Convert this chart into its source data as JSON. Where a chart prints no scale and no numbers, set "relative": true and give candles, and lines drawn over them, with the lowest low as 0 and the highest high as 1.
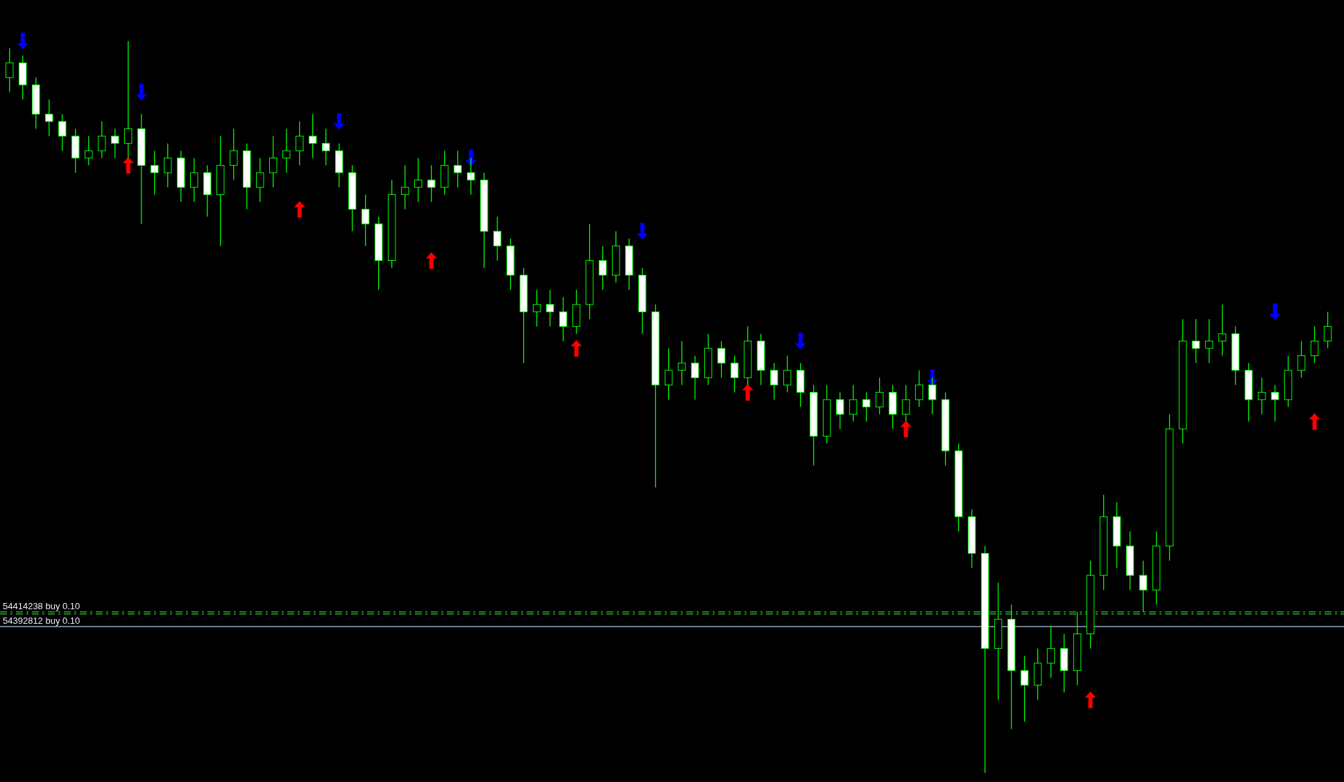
{
  "chart_data": {
    "type": "candlestick",
    "relative": true,
    "categories": [
      null,
      null,
      null,
      null,
      null,
      null,
      null,
      null,
      null,
      null,
      null,
      null,
      null,
      null,
      null,
      null,
      null,
      null,
      null,
      null,
      null,
      null,
      null,
      null,
      null,
      null,
      null,
      null,
      null,
      null,
      null,
      null,
      null,
      null,
      null,
      null,
      null,
      null,
      null,
      null,
      null,
      null,
      null,
      null,
      null,
      null,
      null,
      null,
      null,
      null,
      null,
      null,
      null,
      null,
      null,
      null,
      null,
      null,
      null,
      null,
      null,
      null,
      null,
      null,
      null,
      null,
      null,
      null,
      null,
      null,
      null,
      null,
      null,
      null,
      null,
      null,
      null,
      null,
      null,
      null,
      null,
      null,
      null,
      null,
      null,
      null,
      null,
      null,
      null,
      null,
      null,
      null,
      null,
      null,
      null,
      null,
      null,
      null,
      null,
      null,
      null
    ],
    "ohlc": [
      [
        0.95,
        0.99,
        0.93,
        0.97
      ],
      [
        0.97,
        0.98,
        0.92,
        0.94
      ],
      [
        0.94,
        0.95,
        0.88,
        0.9
      ],
      [
        0.9,
        0.92,
        0.87,
        0.89
      ],
      [
        0.89,
        0.9,
        0.85,
        0.87
      ],
      [
        0.87,
        0.88,
        0.82,
        0.84
      ],
      [
        0.84,
        0.87,
        0.83,
        0.85
      ],
      [
        0.85,
        0.89,
        0.84,
        0.87
      ],
      [
        0.87,
        0.88,
        0.84,
        0.86
      ],
      [
        0.86,
        1.0,
        0.84,
        0.88
      ],
      [
        0.88,
        0.9,
        0.75,
        0.83
      ],
      [
        0.83,
        0.85,
        0.79,
        0.82
      ],
      [
        0.82,
        0.86,
        0.8,
        0.84
      ],
      [
        0.84,
        0.85,
        0.78,
        0.8
      ],
      [
        0.8,
        0.84,
        0.78,
        0.82
      ],
      [
        0.82,
        0.83,
        0.76,
        0.79
      ],
      [
        0.79,
        0.87,
        0.72,
        0.83
      ],
      [
        0.83,
        0.88,
        0.81,
        0.85
      ],
      [
        0.85,
        0.86,
        0.77,
        0.8
      ],
      [
        0.8,
        0.84,
        0.78,
        0.82
      ],
      [
        0.82,
        0.87,
        0.8,
        0.84
      ],
      [
        0.84,
        0.88,
        0.82,
        0.85
      ],
      [
        0.85,
        0.89,
        0.83,
        0.87
      ],
      [
        0.87,
        0.9,
        0.84,
        0.86
      ],
      [
        0.86,
        0.88,
        0.83,
        0.85
      ],
      [
        0.85,
        0.86,
        0.8,
        0.82
      ],
      [
        0.82,
        0.83,
        0.74,
        0.77
      ],
      [
        0.77,
        0.79,
        0.72,
        0.75
      ],
      [
        0.75,
        0.76,
        0.66,
        0.7
      ],
      [
        0.7,
        0.81,
        0.69,
        0.79
      ],
      [
        0.79,
        0.83,
        0.77,
        0.8
      ],
      [
        0.8,
        0.84,
        0.78,
        0.81
      ],
      [
        0.81,
        0.83,
        0.78,
        0.8
      ],
      [
        0.8,
        0.85,
        0.79,
        0.83
      ],
      [
        0.83,
        0.85,
        0.8,
        0.82
      ],
      [
        0.82,
        0.84,
        0.79,
        0.81
      ],
      [
        0.81,
        0.82,
        0.69,
        0.74
      ],
      [
        0.74,
        0.76,
        0.7,
        0.72
      ],
      [
        0.72,
        0.73,
        0.66,
        0.68
      ],
      [
        0.68,
        0.69,
        0.56,
        0.63
      ],
      [
        0.63,
        0.66,
        0.61,
        0.64
      ],
      [
        0.64,
        0.66,
        0.61,
        0.63
      ],
      [
        0.63,
        0.65,
        0.59,
        0.61
      ],
      [
        0.61,
        0.66,
        0.6,
        0.64
      ],
      [
        0.64,
        0.75,
        0.62,
        0.7
      ],
      [
        0.7,
        0.72,
        0.66,
        0.68
      ],
      [
        0.68,
        0.74,
        0.67,
        0.72
      ],
      [
        0.72,
        0.73,
        0.66,
        0.68
      ],
      [
        0.68,
        0.69,
        0.6,
        0.63
      ],
      [
        0.63,
        0.64,
        0.39,
        0.53
      ],
      [
        0.53,
        0.58,
        0.51,
        0.55
      ],
      [
        0.55,
        0.59,
        0.53,
        0.56
      ],
      [
        0.56,
        0.57,
        0.51,
        0.54
      ],
      [
        0.54,
        0.6,
        0.53,
        0.58
      ],
      [
        0.58,
        0.59,
        0.54,
        0.56
      ],
      [
        0.56,
        0.57,
        0.52,
        0.54
      ],
      [
        0.54,
        0.61,
        0.53,
        0.59
      ],
      [
        0.59,
        0.6,
        0.53,
        0.55
      ],
      [
        0.55,
        0.56,
        0.51,
        0.53
      ],
      [
        0.53,
        0.57,
        0.52,
        0.55
      ],
      [
        0.55,
        0.56,
        0.5,
        0.52
      ],
      [
        0.52,
        0.53,
        0.42,
        0.46
      ],
      [
        0.46,
        0.53,
        0.45,
        0.51
      ],
      [
        0.51,
        0.52,
        0.47,
        0.49
      ],
      [
        0.49,
        0.53,
        0.48,
        0.51
      ],
      [
        0.51,
        0.52,
        0.48,
        0.5
      ],
      [
        0.5,
        0.54,
        0.49,
        0.52
      ],
      [
        0.52,
        0.53,
        0.47,
        0.49
      ],
      [
        0.49,
        0.53,
        0.48,
        0.51
      ],
      [
        0.51,
        0.55,
        0.5,
        0.53
      ],
      [
        0.53,
        0.54,
        0.49,
        0.51
      ],
      [
        0.51,
        0.52,
        0.42,
        0.44
      ],
      [
        0.44,
        0.45,
        0.33,
        0.35
      ],
      [
        0.35,
        0.36,
        0.28,
        0.3
      ],
      [
        0.3,
        0.31,
        0.0,
        0.17
      ],
      [
        0.17,
        0.26,
        0.1,
        0.21
      ],
      [
        0.21,
        0.23,
        0.06,
        0.14
      ],
      [
        0.14,
        0.16,
        0.07,
        0.12
      ],
      [
        0.12,
        0.17,
        0.1,
        0.15
      ],
      [
        0.15,
        0.2,
        0.13,
        0.17
      ],
      [
        0.17,
        0.19,
        0.11,
        0.14
      ],
      [
        0.14,
        0.22,
        0.12,
        0.19
      ],
      [
        0.19,
        0.29,
        0.17,
        0.27
      ],
      [
        0.27,
        0.38,
        0.25,
        0.35
      ],
      [
        0.35,
        0.37,
        0.28,
        0.31
      ],
      [
        0.31,
        0.33,
        0.25,
        0.27
      ],
      [
        0.27,
        0.29,
        0.22,
        0.25
      ],
      [
        0.25,
        0.33,
        0.23,
        0.31
      ],
      [
        0.31,
        0.49,
        0.29,
        0.47
      ],
      [
        0.47,
        0.62,
        0.45,
        0.59
      ],
      [
        0.59,
        0.62,
        0.56,
        0.58
      ],
      [
        0.58,
        0.62,
        0.56,
        0.59
      ],
      [
        0.59,
        0.64,
        0.57,
        0.6
      ],
      [
        0.6,
        0.61,
        0.53,
        0.55
      ],
      [
        0.55,
        0.56,
        0.48,
        0.51
      ],
      [
        0.51,
        0.54,
        0.49,
        0.52
      ],
      [
        0.52,
        0.53,
        0.48,
        0.51
      ],
      [
        0.51,
        0.57,
        0.5,
        0.55
      ],
      [
        0.55,
        0.59,
        0.54,
        0.57
      ],
      [
        0.57,
        0.61,
        0.56,
        0.59
      ],
      [
        0.59,
        0.63,
        0.58,
        0.61
      ]
    ],
    "color": "#00ff00",
    "series": [
      {
        "type": "scatter",
        "color": "#0000ff",
        "marker": "triangle-down",
        "values": [
          null,
          1.0,
          null,
          null,
          null,
          null,
          null,
          null,
          null,
          null,
          0.93,
          null,
          null,
          null,
          null,
          null,
          null,
          null,
          null,
          null,
          null,
          null,
          null,
          null,
          null,
          0.89,
          null,
          null,
          null,
          null,
          null,
          null,
          null,
          null,
          null,
          0.84,
          null,
          null,
          null,
          null,
          null,
          null,
          null,
          null,
          null,
          null,
          null,
          null,
          0.74,
          null,
          null,
          null,
          null,
          null,
          null,
          null,
          null,
          null,
          null,
          null,
          0.59,
          null,
          null,
          null,
          null,
          null,
          null,
          null,
          null,
          null,
          0.54,
          null,
          null,
          null,
          null,
          null,
          null,
          null,
          null,
          null,
          null,
          null,
          null,
          null,
          null,
          null,
          null,
          null,
          null,
          null,
          null,
          null,
          null,
          null,
          null,
          null,
          0.63,
          null,
          null,
          null,
          null
        ]
      },
      {
        "type": "scatter",
        "color": "#ff0000",
        "marker": "triangle",
        "values": [
          null,
          null,
          null,
          null,
          null,
          null,
          null,
          null,
          null,
          0.83,
          null,
          null,
          null,
          null,
          null,
          null,
          null,
          null,
          null,
          null,
          null,
          null,
          0.77,
          null,
          null,
          null,
          null,
          null,
          null,
          null,
          null,
          null,
          0.7,
          null,
          null,
          null,
          null,
          null,
          null,
          null,
          null,
          null,
          null,
          0.58,
          null,
          null,
          null,
          null,
          null,
          null,
          null,
          null,
          null,
          null,
          null,
          null,
          0.52,
          null,
          null,
          null,
          null,
          null,
          null,
          null,
          null,
          null,
          null,
          null,
          0.47,
          null,
          null,
          null,
          null,
          null,
          null,
          null,
          null,
          null,
          null,
          null,
          null,
          null,
          0.1,
          null,
          null,
          null,
          null,
          null,
          null,
          null,
          null,
          null,
          null,
          null,
          null,
          null,
          null,
          null,
          null,
          0.48,
          null
        ]
      }
    ],
    "ref_lines": [
      {
        "axis": "y",
        "value": 0.22,
        "label": "54414238 buy 0.10",
        "color": "#33cc33",
        "line_style": "dashed"
      },
      {
        "axis": "y",
        "value": 0.22,
        "label": "54392812 buy 0.10",
        "color": "#33cc33",
        "line_style": "dashed"
      },
      {
        "axis": "y",
        "value": 0.2,
        "color": "#8fa8c0",
        "line_style": "solid"
      }
    ]
  }
}
